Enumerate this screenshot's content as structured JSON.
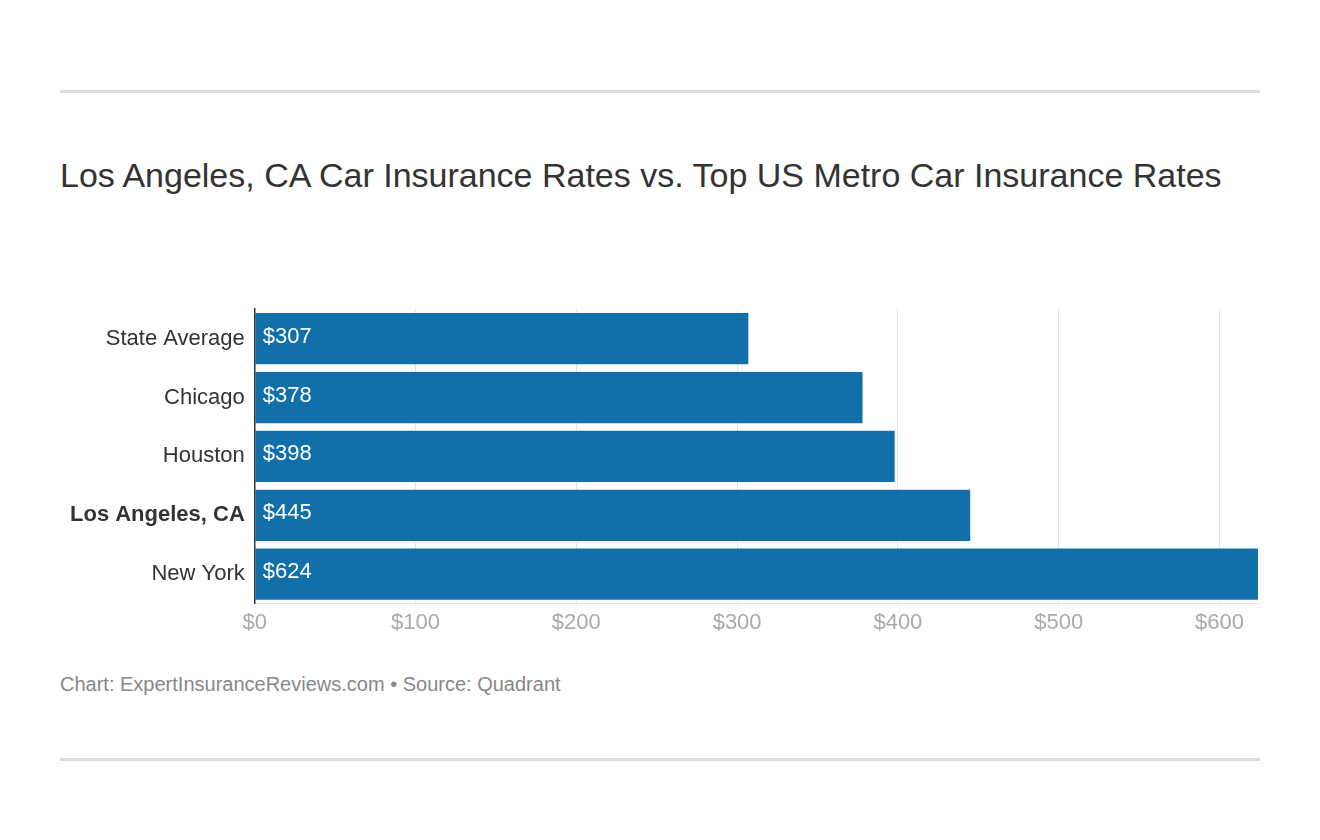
{
  "chart_data": {
    "type": "bar",
    "orientation": "horizontal",
    "title": "Los Angeles, CA Car Insurance Rates vs. Top US Metro Car Insurance Rates",
    "caption": "Chart: ExpertInsuranceReviews.com • Source: Quadrant",
    "categories": [
      "State Average",
      "Chicago",
      "Houston",
      "Los Angeles, CA",
      "New York"
    ],
    "values": [
      307,
      378,
      398,
      445,
      624
    ],
    "value_labels": [
      "$307",
      "$378",
      "$398",
      "$445",
      "$624"
    ],
    "data_labels": true,
    "color": "#1170aa",
    "xlim": [
      0,
      624
    ],
    "xticks": [
      {
        "value": 0,
        "label": "$0"
      },
      {
        "value": 100,
        "label": "$100"
      },
      {
        "value": 200,
        "label": "$200"
      },
      {
        "value": 300,
        "label": "$300"
      },
      {
        "value": 400,
        "label": "$400"
      },
      {
        "value": 500,
        "label": "$500"
      },
      {
        "value": 600,
        "label": "$600"
      }
    ],
    "grid": true
  }
}
